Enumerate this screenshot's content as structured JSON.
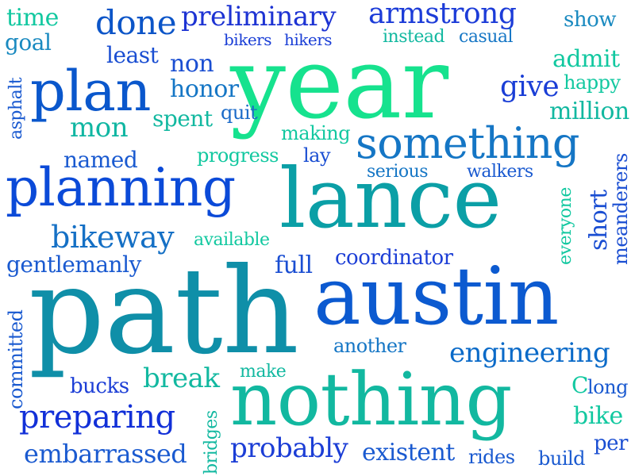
{
  "words": [
    {
      "text": "year",
      "color": "#16e28e"
    },
    {
      "text": "path",
      "color": "#0f8fa8"
    },
    {
      "text": "austin",
      "color": "#0c5ad0"
    },
    {
      "text": "lance",
      "color": "#0b9fa6"
    },
    {
      "text": "nothing",
      "color": "#12b8a0"
    },
    {
      "text": "planning",
      "color": "#0b4ad8"
    },
    {
      "text": "plan",
      "color": "#0a57cc"
    },
    {
      "text": "something",
      "color": "#1576c5"
    },
    {
      "text": "armstrong",
      "color": "#1c3cd8"
    },
    {
      "text": "preliminary",
      "color": "#1d33d3"
    },
    {
      "text": "done",
      "color": "#0c55c8"
    },
    {
      "text": "bikeway",
      "color": "#1570c5"
    },
    {
      "text": "engineering",
      "color": "#0a6ac8"
    },
    {
      "text": "preparing",
      "color": "#1230d8"
    },
    {
      "text": "embarrassed",
      "color": "#1a5ad0"
    },
    {
      "text": "probably",
      "color": "#1c3ed6"
    },
    {
      "text": "existent",
      "color": "#1a5ad0"
    },
    {
      "text": "gentlemanly",
      "color": "#1a5ad0"
    },
    {
      "text": "coordinator",
      "color": "#1c3ed6"
    },
    {
      "text": "mon",
      "color": "#10b6a2"
    },
    {
      "text": "honor",
      "color": "#1576c5"
    },
    {
      "text": "non",
      "color": "#1a4ed2"
    },
    {
      "text": "named",
      "color": "#1a5ad0"
    },
    {
      "text": "give",
      "color": "#1a3ed6"
    },
    {
      "text": "break",
      "color": "#12b8a0"
    },
    {
      "text": "full",
      "color": "#1a4ed2"
    },
    {
      "text": "another",
      "color": "#1576c5"
    },
    {
      "text": "bucks",
      "color": "#1c3ed6"
    },
    {
      "text": "bike",
      "color": "#12c8a0"
    },
    {
      "text": "time",
      "color": "#12c8a0"
    },
    {
      "text": "goal",
      "color": "#1a8ac0"
    },
    {
      "text": "least",
      "color": "#1a4ed2"
    },
    {
      "text": "spent",
      "color": "#12b8a0"
    },
    {
      "text": "quit",
      "color": "#1a6ac8"
    },
    {
      "text": "making",
      "color": "#12c8a0"
    },
    {
      "text": "progress",
      "color": "#12c8a0"
    },
    {
      "text": "lay",
      "color": "#1a4ed2"
    },
    {
      "text": "serious",
      "color": "#1576c5"
    },
    {
      "text": "walkers",
      "color": "#1a5ad0"
    },
    {
      "text": "available",
      "color": "#12c8a0"
    },
    {
      "text": "make",
      "color": "#12b8a0"
    },
    {
      "text": "bikers",
      "color": "#1a3ed6"
    },
    {
      "text": "hikers",
      "color": "#1a3ed6"
    },
    {
      "text": "instead",
      "color": "#12b8a0"
    },
    {
      "text": "casual",
      "color": "#1576c5"
    },
    {
      "text": "show",
      "color": "#1a8ac0"
    },
    {
      "text": "admit",
      "color": "#12c8a0"
    },
    {
      "text": "happy",
      "color": "#12c8a0"
    },
    {
      "text": "million",
      "color": "#12b8a0"
    },
    {
      "text": "C",
      "color": "#12c8a0"
    },
    {
      "text": "long",
      "color": "#1a5ad0"
    },
    {
      "text": "per",
      "color": "#1a4ed2"
    },
    {
      "text": "build",
      "color": "#1a5ad0"
    },
    {
      "text": "rides",
      "color": "#1a5ad0"
    },
    {
      "text": "asphalt",
      "color": "#1a5ad0"
    },
    {
      "text": "committed",
      "color": "#1a5ad0"
    },
    {
      "text": "bridges",
      "color": "#12b8a0"
    },
    {
      "text": "everyone",
      "color": "#12c8a0"
    },
    {
      "text": "short",
      "color": "#1a4ed2"
    },
    {
      "text": "meanderers",
      "color": "#1a4ed2"
    }
  ]
}
